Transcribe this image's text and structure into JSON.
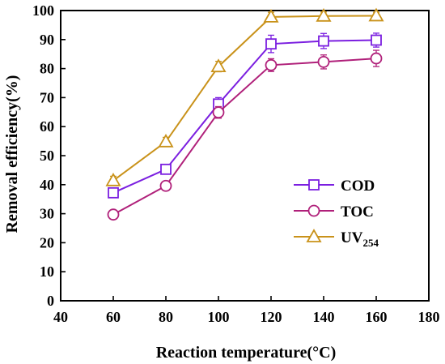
{
  "chart_data": {
    "type": "line",
    "title": "",
    "xlabel": "Reaction temperature(°C)",
    "ylabel": "Removal efficiency(%)",
    "xlim": [
      40,
      180
    ],
    "ylim": [
      0,
      100
    ],
    "xticks": [
      40,
      60,
      80,
      100,
      120,
      140,
      160,
      180
    ],
    "yticks": [
      0,
      10,
      20,
      30,
      40,
      50,
      60,
      70,
      80,
      90,
      100
    ],
    "x": [
      60,
      80,
      100,
      120,
      140,
      160
    ],
    "grid": false,
    "legend_position": "right-middle",
    "series": [
      {
        "name": "COD",
        "legend_text": "COD",
        "legend_sub": "",
        "marker": "square",
        "color": "#7B1FE0",
        "values": [
          37.2,
          45.3,
          67.8,
          88.5,
          89.5,
          89.8
        ],
        "errors": [
          1.5,
          1.5,
          2.2,
          3.0,
          2.6,
          2.4
        ]
      },
      {
        "name": "TOC",
        "legend_text": "TOC",
        "legend_sub": "",
        "marker": "circle",
        "color": "#B0207A",
        "values": [
          29.7,
          39.6,
          64.9,
          81.2,
          82.3,
          83.5
        ],
        "errors": [
          1.2,
          1.2,
          2.0,
          2.2,
          2.4,
          2.8
        ]
      },
      {
        "name": "UV254",
        "legend_text": "UV",
        "legend_sub": "254",
        "marker": "triangle",
        "color": "#C9921A",
        "values": [
          41.4,
          54.8,
          80.7,
          97.8,
          98.1,
          98.2
        ],
        "errors": [
          1.5,
          1.5,
          1.8,
          1.6,
          1.4,
          1.2
        ]
      }
    ]
  }
}
